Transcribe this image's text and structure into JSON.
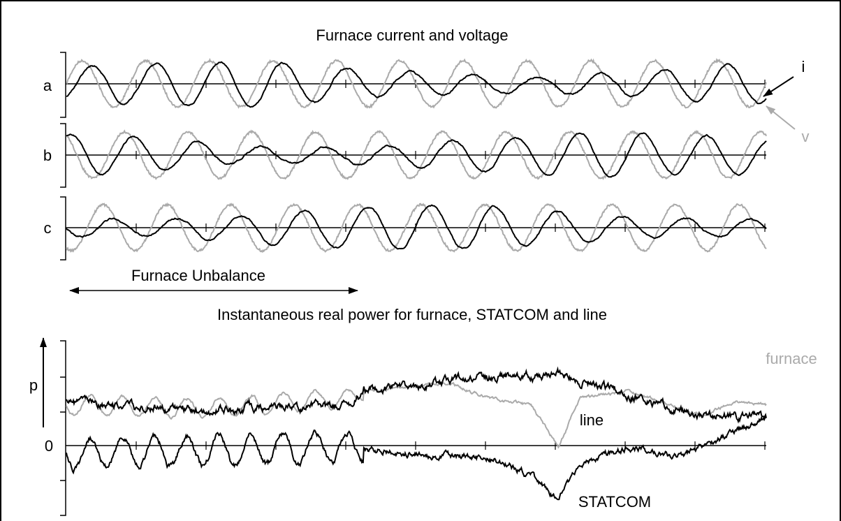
{
  "figure": {
    "top_title": "Furnace current and voltage",
    "phases": [
      "a",
      "b",
      "c"
    ],
    "current_label": "i",
    "voltage_label": "v",
    "bottom_title": "Instantaneous real power for furnace, STATCOM and line",
    "power_axis_label": "p",
    "zero_label": "0",
    "unbalance_label": "Furnace Unbalance",
    "line_label": "line",
    "furnace_label": "furnace",
    "statcom_label": "STATCOM"
  }
}
